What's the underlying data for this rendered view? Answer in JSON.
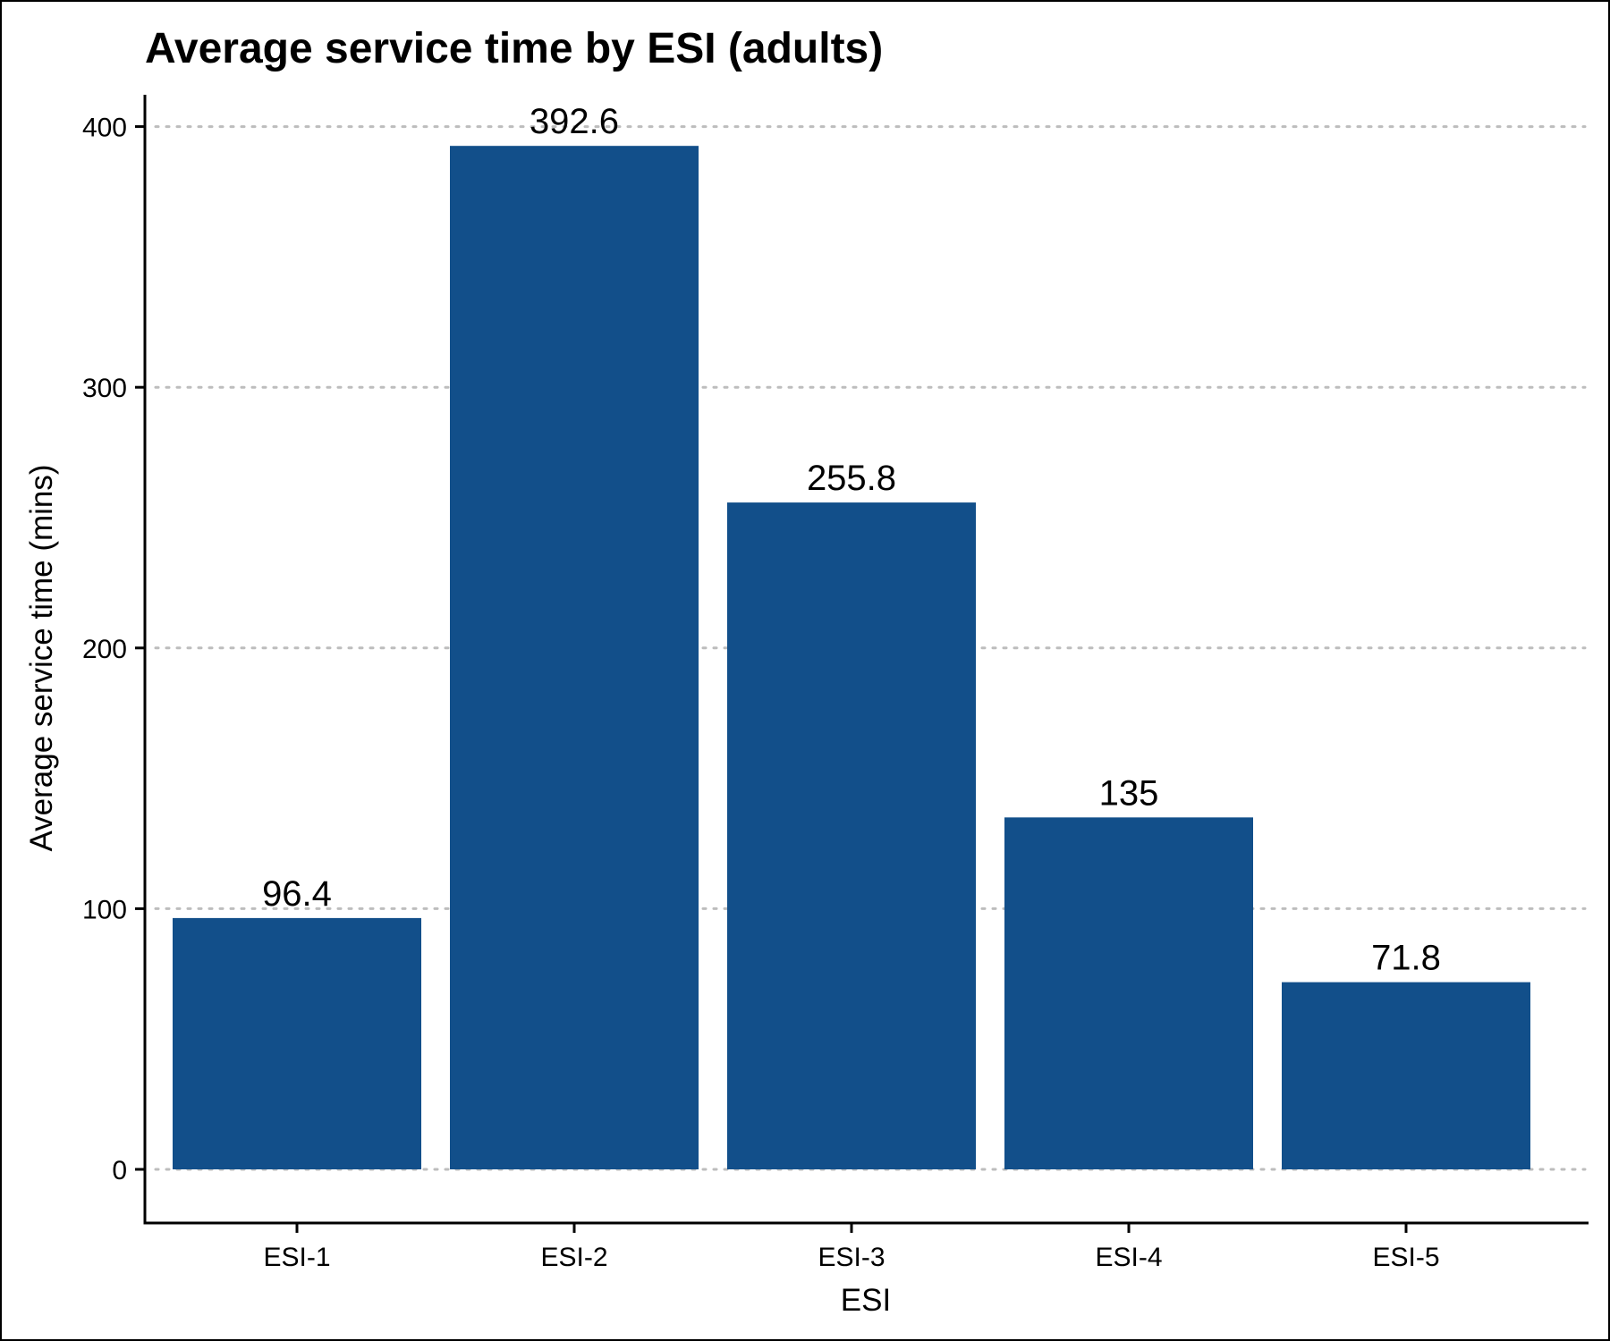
{
  "chart_data": {
    "type": "bar",
    "title": "Average service time by ESI (adults)",
    "xlabel": "ESI",
    "ylabel": "Average service time (mins)",
    "categories": [
      "ESI-1",
      "ESI-2",
      "ESI-3",
      "ESI-4",
      "ESI-5"
    ],
    "values": [
      96.4,
      392.6,
      255.8,
      135,
      71.8
    ],
    "data_labels": [
      "96.4",
      "392.6",
      "255.8",
      "135",
      "71.8"
    ],
    "yticks": [
      0,
      100,
      200,
      300,
      400
    ],
    "ylim": [
      -20,
      413
    ],
    "grid": "horizontal dotted",
    "bar_color": "#124f8a",
    "legend": "none"
  }
}
